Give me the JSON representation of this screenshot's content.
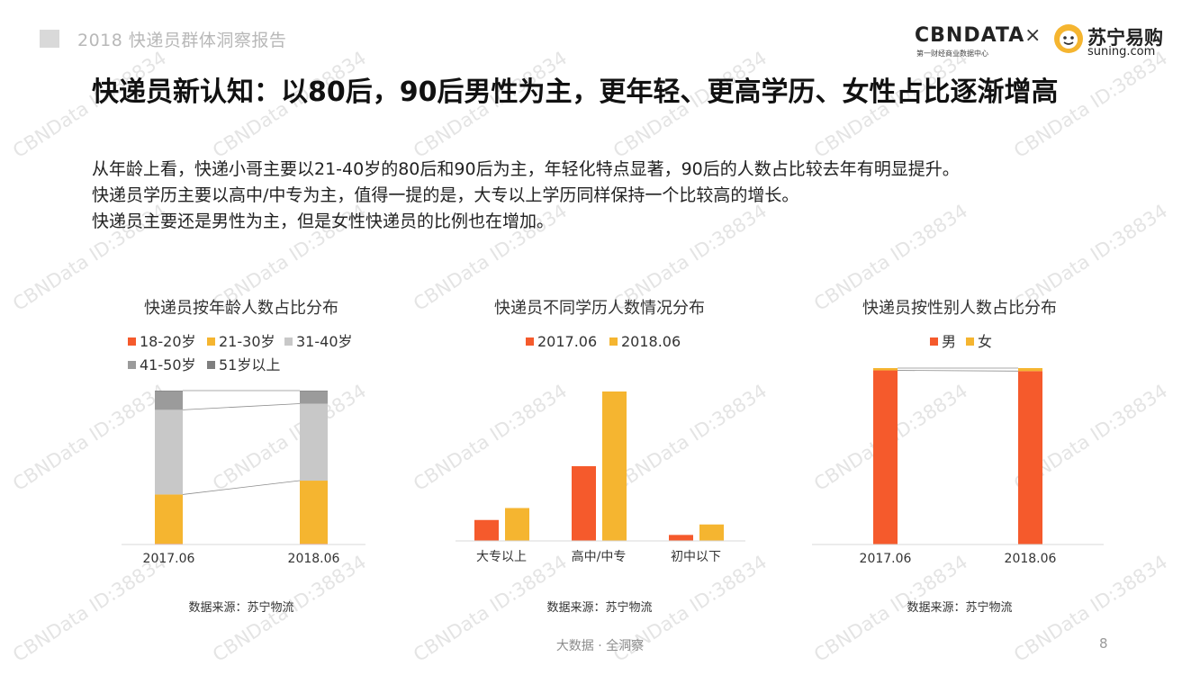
{
  "header": {
    "report_title": "2018 快递员群体洞察报告"
  },
  "logos": {
    "cbn_main": "CBNDATA",
    "cbn_sub": "第一财经商业数据中心",
    "times": "×",
    "suning_cn": "苏宁易购",
    "suning_en": "suning.com"
  },
  "slide": {
    "title": "快递员新认知：以80后，90后男性为主，更年轻、更高学历、女性占比逐渐增高",
    "summary": [
      "从年龄上看，快递小哥主要以21-40岁的80后和90后为主，年轻化特点显著，90后的人数占比较去年有明显提升。",
      "快递员学历主要以高中/中专为主，值得一提的是，大专以上学历同样保持一个比较高的增长。",
      "快递员主要还是男性为主，但是女性快递员的比例也在增加。"
    ]
  },
  "footer": {
    "brand": "大数据 · 全洞察",
    "page_number": "8"
  },
  "watermark": {
    "text": "CBNData ID:38834"
  },
  "colors": {
    "red": "#f55a2c",
    "orange": "#f5b530",
    "light_gray": "#c8c8c8",
    "mid_gray": "#9b9b9b",
    "dark_gray": "#7f7f7f"
  },
  "chart_data": [
    {
      "type": "bar",
      "stacked": true,
      "percent": true,
      "title": "快递员按年龄人数占比分布",
      "categories": [
        "2017.06",
        "2018.06"
      ],
      "series": [
        {
          "name": "18-20岁",
          "color": "#f55a2c",
          "values": [
            0.5,
            0.5
          ]
        },
        {
          "name": "21-30岁",
          "color": "#f5b530",
          "values": [
            32,
            41
          ]
        },
        {
          "name": "31-40岁",
          "color": "#c8c8c8",
          "values": [
            55,
            50
          ]
        },
        {
          "name": "41-50岁",
          "color": "#9b9b9b",
          "values": [
            12,
            8
          ]
        },
        {
          "name": "51岁以上",
          "color": "#7f7f7f",
          "values": [
            0.5,
            0.5
          ]
        }
      ],
      "ylim": [
        0,
        100
      ],
      "grid": false,
      "legend": "top",
      "source": "数据来源：苏宁物流"
    },
    {
      "type": "bar",
      "title": "快递员不同学历人数情况分布",
      "categories": [
        "大专以上",
        "高中/中专",
        "初中以下"
      ],
      "series": [
        {
          "name": "2017.06",
          "color": "#f55a2c",
          "values": [
            14,
            50,
            4
          ]
        },
        {
          "name": "2018.06",
          "color": "#f5b530",
          "values": [
            22,
            100,
            11
          ]
        }
      ],
      "ylim": [
        0,
        100
      ],
      "grid": false,
      "legend": "top",
      "source": "数据来源：苏宁物流"
    },
    {
      "type": "bar",
      "stacked": true,
      "percent": true,
      "title": "快递员按性别人数占比分布",
      "categories": [
        "2017.06",
        "2018.06"
      ],
      "series": [
        {
          "name": "男",
          "color": "#f55a2c",
          "values": [
            98.7,
            98.3
          ]
        },
        {
          "name": "女",
          "color": "#f5b530",
          "values": [
            1.3,
            1.7
          ]
        }
      ],
      "ylim": [
        0,
        100
      ],
      "grid": false,
      "legend": "top",
      "source": "数据来源：苏宁物流"
    }
  ]
}
